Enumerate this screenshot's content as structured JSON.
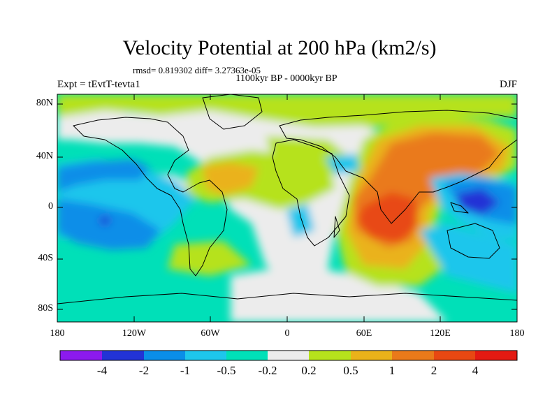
{
  "header": {
    "title": "Velocity Potential at 200 hPa (km2/s)",
    "rmsd_line": "rmsd= 0.819302 diff= 3.27363e-05",
    "period": "1100kyr BP - 0000kyr BP",
    "experiment": "Expt = tEvtT-tevta1",
    "season": "DJF"
  },
  "map": {
    "y_ticks": [
      "80N",
      "40N",
      "0",
      "40S",
      "80S"
    ],
    "x_ticks": [
      "180",
      "120W",
      "60W",
      "0",
      "60E",
      "120E",
      "180"
    ],
    "colors": {
      "ocean_background": "#00e0b8",
      "land_lines": "#000000",
      "frame": "#000000"
    }
  },
  "colorbar": {
    "colors": [
      "#8c1aee",
      "#2233d6",
      "#0a8ee8",
      "#1ec6ec",
      "#00e0b8",
      "#ececec",
      "#b6e21c",
      "#eab21a",
      "#ea7a1a",
      "#e84812",
      "#e41a12"
    ],
    "labels": [
      "-4",
      "-2",
      "-1",
      "-0.5",
      "-0.2",
      "0.2",
      "0.5",
      "1",
      "2",
      "4"
    ]
  }
}
